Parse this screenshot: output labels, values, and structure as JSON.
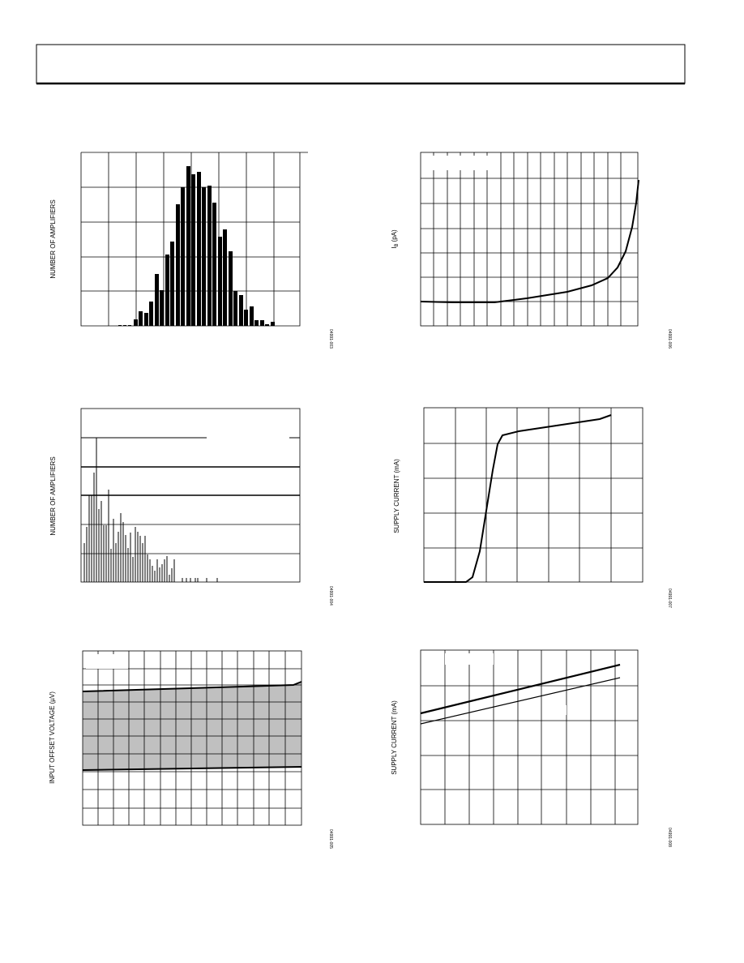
{
  "figures": [
    {
      "y_label": "NUMBER OF AMPLIFIERS",
      "code": "04991-003"
    },
    {
      "y_label": {
        "symbol": "I",
        "subscript": "B",
        "unit": "(pA)"
      },
      "code": "04991-006"
    },
    {
      "y_label": "NUMBER OF AMPLIFIERS",
      "code": "04991-004"
    },
    {
      "y_label": "SUPPLY CURRENT (mA)",
      "code": "04991-007"
    },
    {
      "y_label": "INPUT OFFSET VOLTAGE (µV)",
      "code": "04991-005"
    },
    {
      "y_label": "SUPPLY CURRENT (mA)",
      "code": "04991-008"
    }
  ]
}
